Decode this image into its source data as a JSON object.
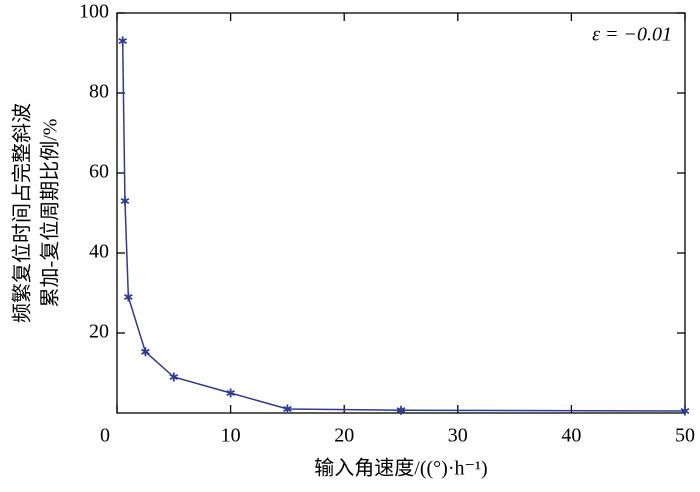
{
  "chart_data": {
    "type": "line",
    "y_label_lines": [
      "频繁复位时间占完整斜波",
      "累加-复位周期比例/%"
    ],
    "x_label": "输入角速度/((°)·h⁻¹)",
    "annotation": "ε = −0.01",
    "x": [
      0.5,
      0.7,
      1,
      2.5,
      5,
      10,
      15,
      25,
      50
    ],
    "series": [
      {
        "color": "#2e3a8f",
        "values": [
          93,
          53,
          29,
          15.3,
          9,
          5,
          1,
          0.7,
          0.5
        ]
      }
    ],
    "xlim": [
      0,
      50
    ],
    "xticks": [
      0,
      10,
      20,
      30,
      40,
      50
    ],
    "ylim": [
      0,
      100
    ],
    "yticks": [
      20,
      40,
      60,
      80,
      100
    ]
  }
}
